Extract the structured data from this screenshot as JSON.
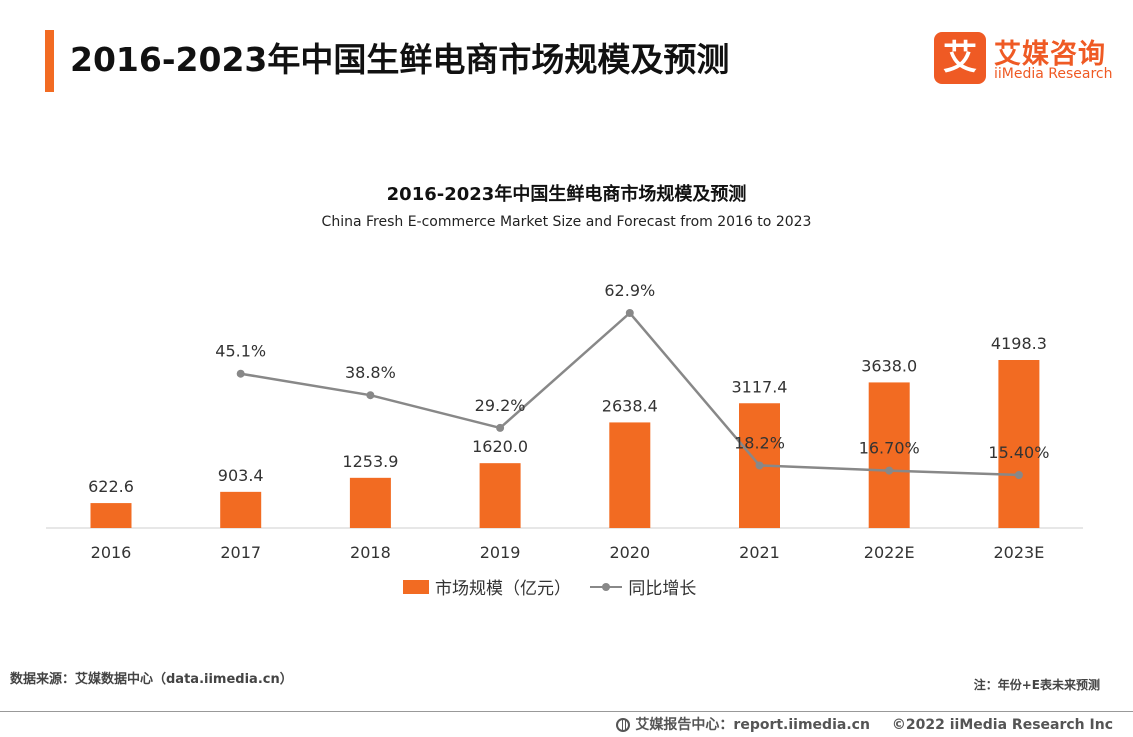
{
  "header": {
    "title": "2016-2023年中国生鲜电商市场规模及预测",
    "logo_icon_char": "艾",
    "logo_cn": "艾媒咨询",
    "logo_en": "iiMedia Research"
  },
  "chart_data": {
    "type": "bar",
    "title": "2016-2023年中国生鲜电商市场规模及预测",
    "subtitle": "China Fresh E-commerce Market Size and Forecast from 2016 to 2023",
    "categories": [
      "2016",
      "2017",
      "2018",
      "2019",
      "2020",
      "2021",
      "2022E",
      "2023E"
    ],
    "series": [
      {
        "name": "市场规模（亿元）",
        "type": "bar",
        "values": [
          622.6,
          903.4,
          1253.9,
          1620.0,
          2638.4,
          3117.4,
          3638.0,
          4198.3
        ],
        "labels": [
          "622.6",
          "903.4",
          "1253.9",
          "1620.0",
          "2638.4",
          "3117.4",
          "3638.0",
          "4198.3"
        ],
        "color": "#f26b22"
      },
      {
        "name": "同比增长",
        "type": "line",
        "values": [
          null,
          45.1,
          38.8,
          29.2,
          62.9,
          18.2,
          16.7,
          15.4
        ],
        "labels": [
          "",
          "45.1%",
          "38.8%",
          "29.2%",
          "62.9%",
          "18.2%",
          "16.70%",
          "15.40%"
        ],
        "color": "#888888"
      }
    ],
    "grid": false,
    "legend": "bottom-center"
  },
  "footer": {
    "source": "数据来源：艾媒数据中心（data.iimedia.cn）",
    "note": "注：年份+E表未来预测",
    "report_site": "艾媒报告中心：report.iimedia.cn",
    "copyright": "©2022  iiMedia Research  Inc"
  }
}
